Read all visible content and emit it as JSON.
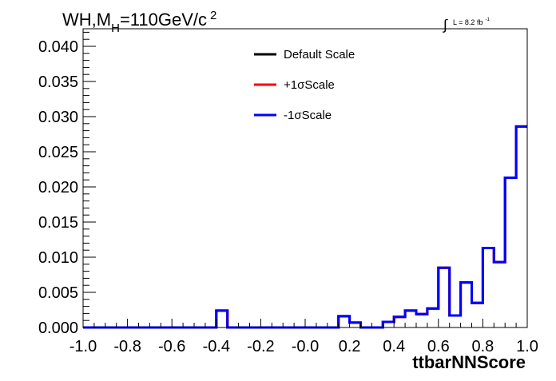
{
  "chart_data": {
    "type": "line",
    "title": {
      "main": "WH,M",
      "subscript": "H",
      "rest": "=110GeV/c",
      "superscript": "2"
    },
    "luminosity": {
      "integral_sign": "∫",
      "text": "L = 8.2 fb",
      "superscript": "-1"
    },
    "xlabel": "ttbarNNScore",
    "ylabel": "",
    "xlim": [
      -1.0,
      1.0
    ],
    "ylim": [
      0.0,
      0.0425
    ],
    "x_ticks": [
      -1.0,
      -0.8,
      -0.6,
      -0.4,
      -0.2,
      0.0,
      0.2,
      0.4,
      0.6,
      0.8,
      1.0
    ],
    "x_tick_labels": [
      "-1.0",
      "-0.8",
      "-0.6",
      "-0.4",
      "-0.2",
      "-0.0",
      "0.2",
      "0.4",
      "0.6",
      "0.8",
      "1.0"
    ],
    "y_ticks": [
      0.0,
      0.005,
      0.01,
      0.015,
      0.02,
      0.025,
      0.03,
      0.035,
      0.04
    ],
    "y_tick_labels": [
      "0.000",
      "0.005",
      "0.010",
      "0.015",
      "0.020",
      "0.025",
      "0.030",
      "0.035",
      "0.040"
    ],
    "bin_edges": [
      -1.0,
      -0.95,
      -0.9,
      -0.85,
      -0.8,
      -0.75,
      -0.7,
      -0.65,
      -0.6,
      -0.55,
      -0.5,
      -0.45,
      -0.4,
      -0.35,
      -0.3,
      -0.25,
      -0.2,
      -0.15,
      -0.1,
      -0.05,
      0.0,
      0.05,
      0.1,
      0.15,
      0.2,
      0.25,
      0.3,
      0.35,
      0.4,
      0.45,
      0.5,
      0.55,
      0.6,
      0.65,
      0.7,
      0.75,
      0.8,
      0.85,
      0.9,
      0.95,
      1.0
    ],
    "legend_position": "top-center",
    "grid": false,
    "series": [
      {
        "name": "Default Scale",
        "color": "#000000",
        "values": [
          0,
          0,
          0,
          0,
          0,
          0,
          0,
          0,
          0,
          0,
          0,
          0,
          0.0024,
          0,
          0,
          0,
          0,
          0,
          0,
          0,
          0,
          0,
          0,
          0.0016,
          0.0007,
          0,
          0,
          0.0008,
          0.0015,
          0.0024,
          0.0019,
          0.0027,
          0.0085,
          0.0017,
          0.0064,
          0.0035,
          0.0113,
          0.0093,
          0.0213,
          0.0286
        ]
      },
      {
        "name": "+1σScale",
        "color": "#ff0000",
        "values": [
          0,
          0,
          0,
          0,
          0,
          0,
          0,
          0,
          0,
          0,
          0,
          0,
          0.0024,
          0,
          0,
          0,
          0,
          0,
          0,
          0,
          0,
          0,
          0,
          0.0016,
          0.0007,
          0,
          0,
          0.0008,
          0.0015,
          0.0024,
          0.0019,
          0.0027,
          0.0085,
          0.0017,
          0.0064,
          0.0035,
          0.0113,
          0.0093,
          0.0213,
          0.0286
        ]
      },
      {
        "name": "-1σScale",
        "color": "#0000ff",
        "values": [
          0,
          0,
          0,
          0,
          0,
          0,
          0,
          0,
          0,
          0,
          0,
          0,
          0.0024,
          0,
          0,
          0,
          0,
          0,
          0,
          0,
          0,
          0,
          0,
          0.0016,
          0.0007,
          0,
          0,
          0.0008,
          0.0015,
          0.0024,
          0.0019,
          0.0027,
          0.0085,
          0.0017,
          0.0064,
          0.0035,
          0.0113,
          0.0093,
          0.0213,
          0.0286
        ]
      }
    ]
  }
}
